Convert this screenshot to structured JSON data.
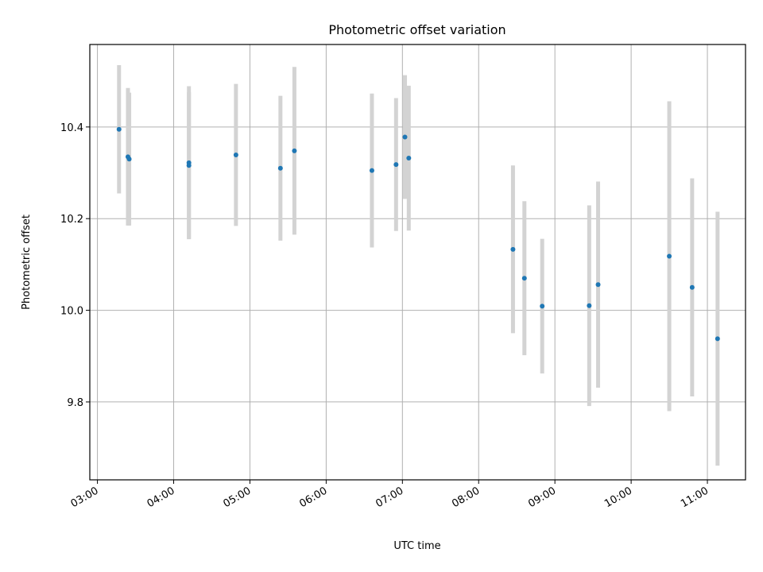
{
  "chart_data": {
    "type": "scatter",
    "title": "Photometric offset variation",
    "xlabel": "UTC time",
    "ylabel": "Photometric offset",
    "x_tick_labels": [
      "03:00",
      "04:00",
      "05:00",
      "06:00",
      "07:00",
      "08:00",
      "09:00",
      "10:00",
      "11:00"
    ],
    "y_tick_labels": [
      "9.8",
      "10.0",
      "10.2",
      "10.4"
    ],
    "xlim": [
      "02:54",
      "11:30"
    ],
    "ylim": [
      9.63,
      10.58
    ],
    "grid": true,
    "marker_color": "#1f77b4",
    "errorbar_color": "#d3d3d3",
    "series": [
      {
        "points": [
          {
            "x": "03:17",
            "y": 10.395,
            "err": 0.14
          },
          {
            "x": "03:24",
            "y": 10.335,
            "err": 0.15
          },
          {
            "x": "03:25",
            "y": 10.33,
            "err": 0.145
          },
          {
            "x": "04:12",
            "y": 10.322,
            "err": 0.167
          },
          {
            "x": "04:12",
            "y": 10.316,
            "err": 0.16
          },
          {
            "x": "04:49",
            "y": 10.339,
            "err": 0.155
          },
          {
            "x": "05:24",
            "y": 10.31,
            "err": 0.158
          },
          {
            "x": "05:35",
            "y": 10.348,
            "err": 0.183
          },
          {
            "x": "06:36",
            "y": 10.305,
            "err": 0.168
          },
          {
            "x": "06:55",
            "y": 10.318,
            "err": 0.145
          },
          {
            "x": "07:02",
            "y": 10.378,
            "err": 0.135
          },
          {
            "x": "07:05",
            "y": 10.332,
            "err": 0.158
          },
          {
            "x": "08:27",
            "y": 10.133,
            "err": 0.183
          },
          {
            "x": "08:36",
            "y": 10.07,
            "err": 0.168
          },
          {
            "x": "08:50",
            "y": 10.009,
            "err": 0.147
          },
          {
            "x": "09:27",
            "y": 10.01,
            "err": 0.219
          },
          {
            "x": "09:34",
            "y": 10.056,
            "err": 0.225
          },
          {
            "x": "10:30",
            "y": 10.118,
            "err": 0.338
          },
          {
            "x": "10:48",
            "y": 10.05,
            "err": 0.238
          },
          {
            "x": "11:08",
            "y": 9.938,
            "err": 0.277
          }
        ]
      }
    ]
  }
}
